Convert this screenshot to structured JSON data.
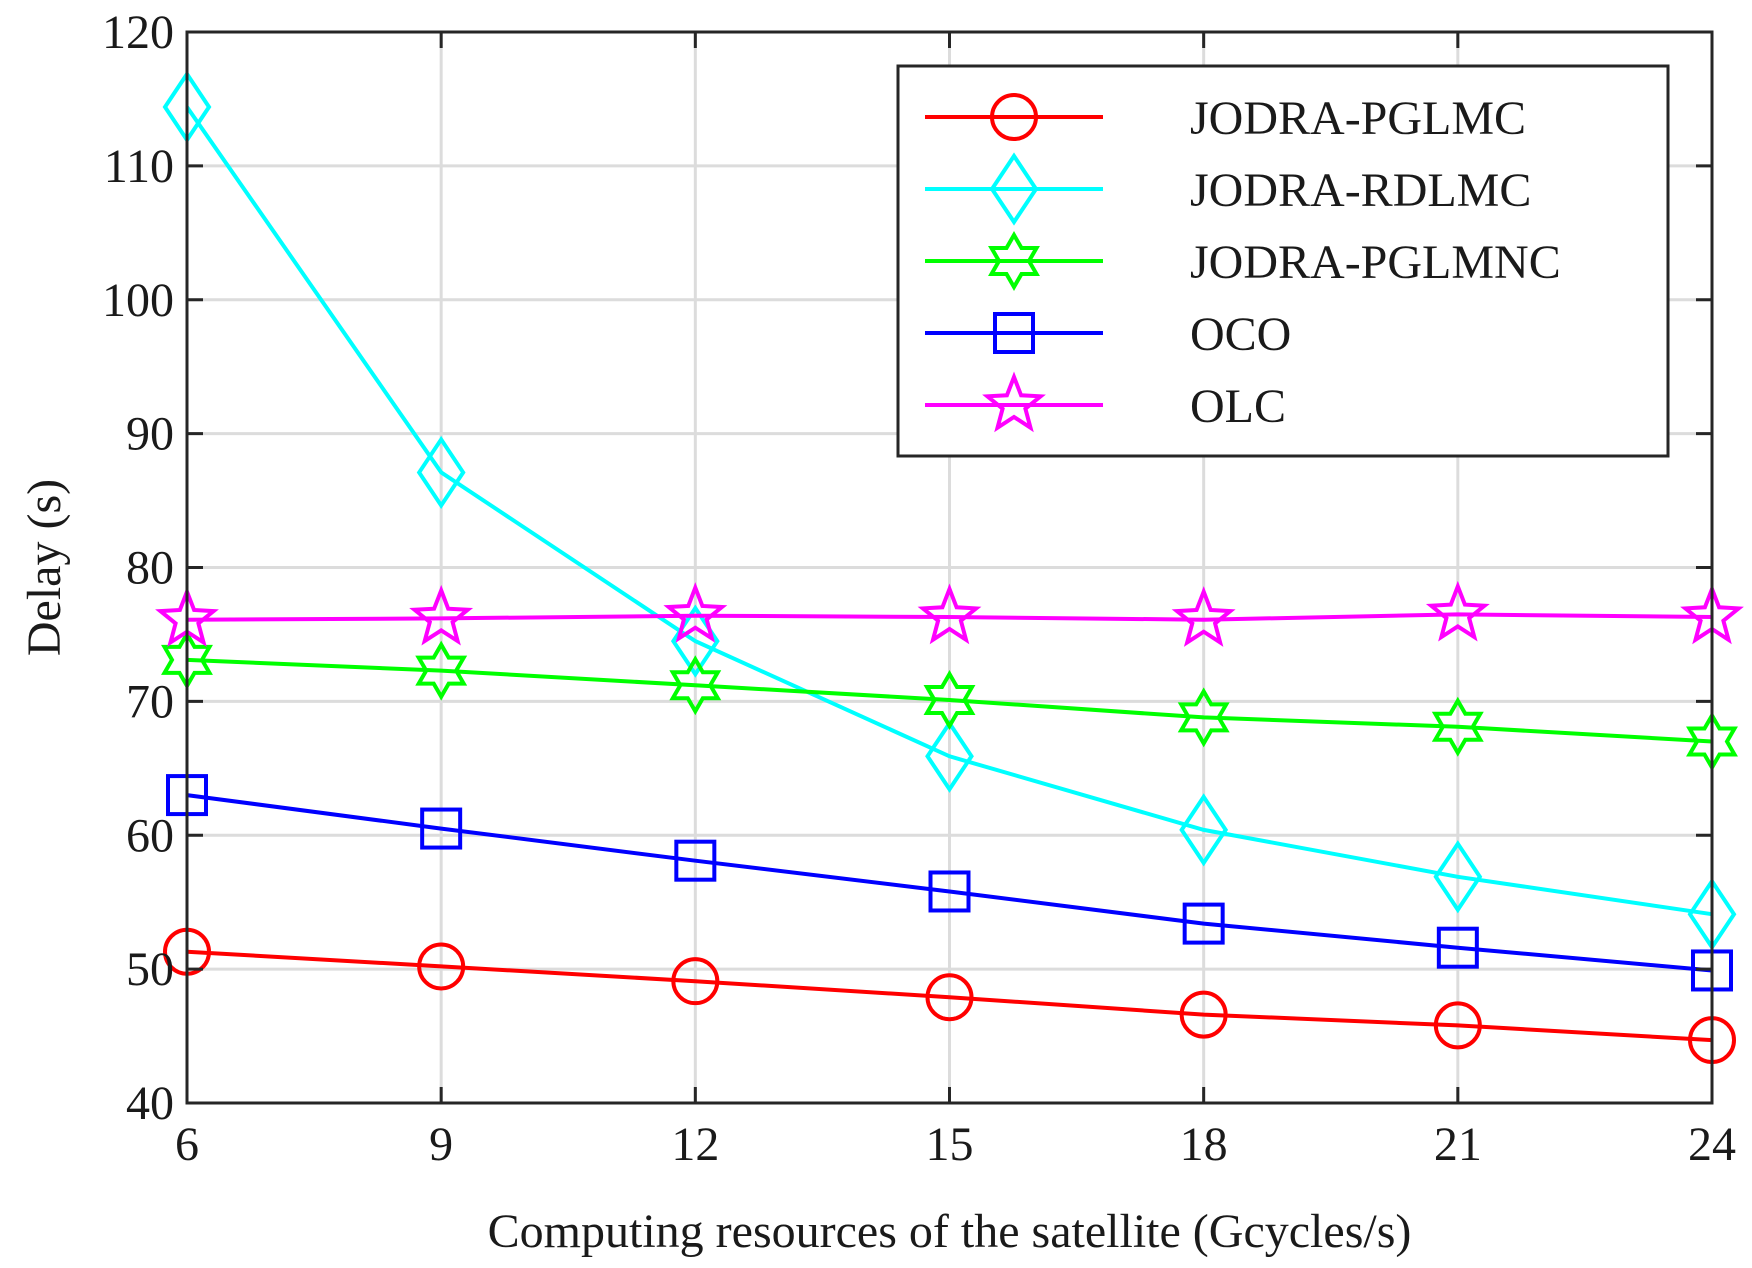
{
  "chart_data": {
    "type": "line",
    "xlabel": "Computing resources of the satellite (Gcycles/s)",
    "ylabel": "Delay (s)",
    "x": [
      6,
      9,
      12,
      15,
      18,
      21,
      24
    ],
    "xlim": [
      6,
      24
    ],
    "ylim": [
      40,
      120
    ],
    "xticks": [
      6,
      9,
      12,
      15,
      18,
      21,
      24
    ],
    "yticks": [
      40,
      50,
      60,
      70,
      80,
      90,
      100,
      110,
      120
    ],
    "grid": true,
    "legend_position": "top-right",
    "series": [
      {
        "name": "JODRA-PGLMC",
        "color": "#ff0000",
        "marker": "circle",
        "values": [
          51.3,
          50.2,
          49.1,
          47.9,
          46.6,
          45.8,
          44.7
        ]
      },
      {
        "name": "JODRA-RDLMC",
        "color": "#00ffff",
        "marker": "diamond",
        "values": [
          114.4,
          87.1,
          74.5,
          65.9,
          60.4,
          56.9,
          54.1
        ]
      },
      {
        "name": "JODRA-PGLMNC",
        "color": "#00ff00",
        "marker": "hexagram",
        "values": [
          73.1,
          72.3,
          71.2,
          70.1,
          68.8,
          68.1,
          67.0
        ]
      },
      {
        "name": "OCO",
        "color": "#0000ff",
        "marker": "square",
        "values": [
          63.0,
          60.5,
          58.1,
          55.8,
          53.4,
          51.6,
          49.9
        ]
      },
      {
        "name": "OLC",
        "color": "#ff00ff",
        "marker": "pentagram",
        "values": [
          76.1,
          76.2,
          76.4,
          76.3,
          76.1,
          76.5,
          76.3
        ]
      }
    ]
  }
}
